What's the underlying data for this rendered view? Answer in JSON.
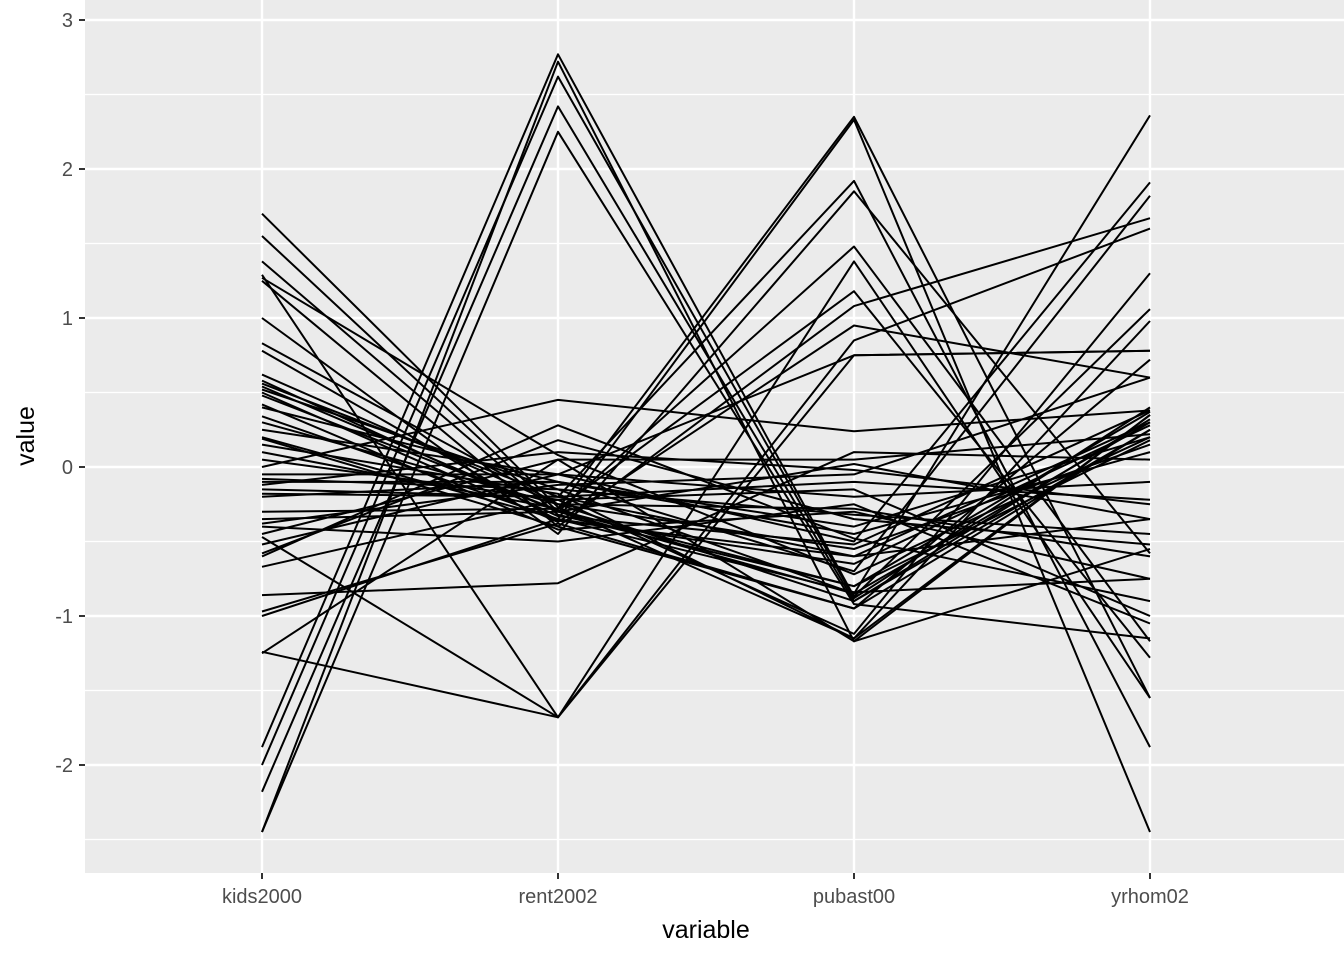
{
  "chart_data": {
    "type": "line",
    "subtype": "parallel-coordinates",
    "title": "",
    "xlabel": "variable",
    "ylabel": "value",
    "categories": [
      "kids2000",
      "rent2002",
      "pubast00",
      "yrhom02"
    ],
    "ylim": [
      -2.72,
      3.0
    ],
    "yticks": [
      -2,
      -1,
      0,
      1,
      2,
      3
    ],
    "ytick_labels": [
      "-2",
      "-1",
      "0",
      "1",
      "2",
      "3"
    ],
    "grid": true,
    "legend": "none",
    "line_color": "#000000",
    "series": [
      {
        "values": [
          1.7,
          -0.27,
          -1.15,
          0.35
        ]
      },
      {
        "values": [
          1.55,
          -0.3,
          -0.85,
          0.3
        ]
      },
      {
        "values": [
          1.38,
          -0.32,
          -0.8,
          0.37
        ]
      },
      {
        "values": [
          1.29,
          -1.68,
          0.75,
          0.78
        ]
      },
      {
        "values": [
          1.27,
          0.08,
          -0.72,
          0.2
        ]
      },
      {
        "values": [
          1.25,
          -0.4,
          -0.95,
          0.25
        ]
      },
      {
        "values": [
          1.0,
          -0.45,
          1.85,
          -0.58
        ]
      },
      {
        "values": [
          0.83,
          -0.25,
          -0.9,
          0.32
        ]
      },
      {
        "values": [
          0.78,
          -0.36,
          -0.6,
          -0.35
        ]
      },
      {
        "values": [
          0.62,
          -0.25,
          -0.55,
          0.15
        ]
      },
      {
        "values": [
          0.58,
          -0.33,
          -0.52,
          0.38
        ]
      },
      {
        "values": [
          0.56,
          -0.2,
          -0.1,
          -0.22
        ]
      },
      {
        "values": [
          0.54,
          -0.3,
          1.48,
          -1.17
        ]
      },
      {
        "values": [
          0.52,
          -0.15,
          -0.32,
          -0.45
        ]
      },
      {
        "values": [
          0.5,
          -0.37,
          0.95,
          0.6
        ]
      },
      {
        "values": [
          0.48,
          -0.29,
          -0.8,
          0.18
        ]
      },
      {
        "values": [
          0.4,
          -0.1,
          -0.45,
          0.1
        ]
      },
      {
        "values": [
          0.34,
          -0.35,
          -0.65,
          0.28
        ]
      },
      {
        "values": [
          0.3,
          -0.25,
          -0.28,
          -0.6
        ]
      },
      {
        "values": [
          0.19,
          -0.4,
          1.08,
          1.67
        ]
      },
      {
        "values": [
          0.0,
          0.45,
          0.24,
          0.38
        ]
      },
      {
        "values": [
          -0.05,
          -0.05,
          -0.2,
          -0.1
        ]
      },
      {
        "values": [
          -0.1,
          -0.1,
          -0.4,
          0.2
        ]
      },
      {
        "values": [
          -0.12,
          0.1,
          -0.02,
          -0.25
        ]
      },
      {
        "values": [
          -0.18,
          -0.2,
          -0.6,
          0.3
        ]
      },
      {
        "values": [
          -0.35,
          -0.3,
          0.02,
          -0.35
        ]
      },
      {
        "values": [
          -0.4,
          -0.5,
          -0.25,
          -1.05
        ]
      },
      {
        "values": [
          -0.45,
          0.05,
          0.05,
          0.22
        ]
      },
      {
        "values": [
          -0.47,
          -1.68,
          1.38,
          -1.55
        ]
      },
      {
        "values": [
          -0.58,
          0.18,
          -0.35,
          -0.52
        ]
      },
      {
        "values": [
          -0.6,
          0.28,
          -0.48,
          -0.9
        ]
      },
      {
        "values": [
          -0.67,
          -0.22,
          -0.15,
          -1.0
        ]
      },
      {
        "values": [
          -0.86,
          -0.78,
          0.1,
          0.05
        ]
      },
      {
        "values": [
          -0.97,
          -0.38,
          -0.95,
          0.72
        ]
      },
      {
        "values": [
          -1.0,
          -0.35,
          -0.84,
          -0.75
        ]
      },
      {
        "values": [
          -1.24,
          -1.68,
          0.85,
          1.6
        ]
      },
      {
        "values": [
          -1.25,
          0.05,
          -1.17,
          0.35
        ]
      },
      {
        "values": [
          -1.88,
          2.77,
          -0.87,
          1.06
        ]
      },
      {
        "values": [
          -2.0,
          2.62,
          -0.88,
          0.4
        ]
      },
      {
        "values": [
          -2.18,
          2.42,
          -0.9,
          0.25
        ]
      },
      {
        "values": [
          -2.45,
          2.72,
          -1.17,
          -0.55
        ]
      },
      {
        "values": [
          -2.45,
          2.25,
          -0.92,
          -1.15
        ]
      },
      {
        "values": [
          -0.3,
          -0.28,
          2.35,
          -1.55
        ]
      },
      {
        "values": [
          0.2,
          -0.35,
          2.33,
          -2.45
        ]
      },
      {
        "values": [
          -0.15,
          -0.2,
          1.92,
          -1.88
        ]
      },
      {
        "values": [
          0.1,
          -0.28,
          1.18,
          -1.28
        ]
      },
      {
        "values": [
          -0.08,
          -0.15,
          -0.85,
          2.36
        ]
      },
      {
        "values": [
          0.25,
          -0.05,
          -0.5,
          1.91
        ]
      },
      {
        "values": [
          -0.2,
          -0.1,
          -0.7,
          1.82
        ]
      },
      {
        "values": [
          0.05,
          -0.22,
          -1.12,
          1.3
        ]
      },
      {
        "values": [
          0.15,
          -0.18,
          -1.15,
          0.98
        ]
      },
      {
        "values": [
          -0.52,
          -0.05,
          0.75,
          0.78
        ]
      },
      {
        "values": [
          0.42,
          -0.42,
          -0.3,
          -0.75
        ]
      },
      {
        "values": [
          -0.38,
          -0.12,
          -0.05,
          0.6
        ]
      }
    ]
  }
}
